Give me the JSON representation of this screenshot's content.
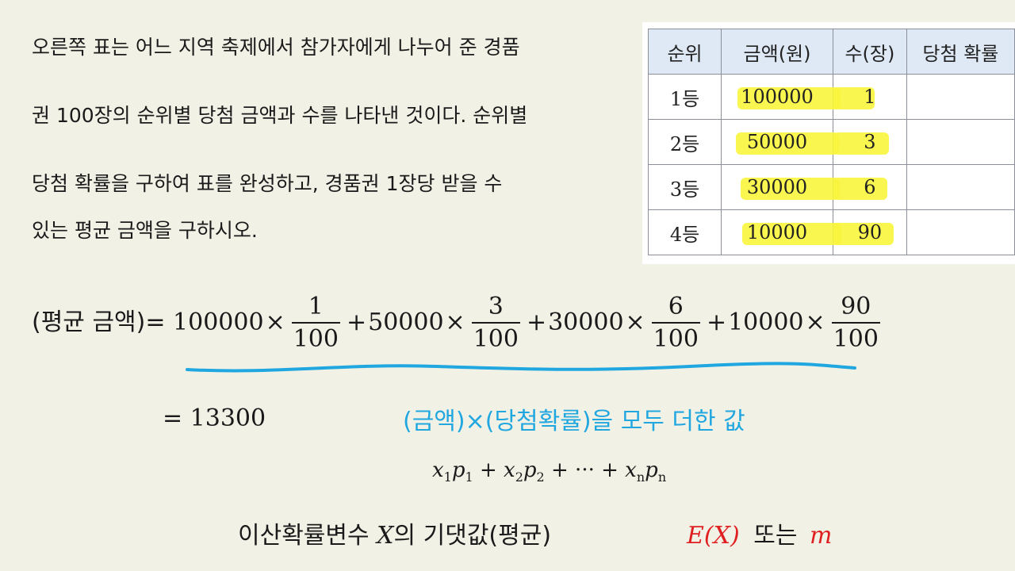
{
  "problem": {
    "lines": [
      "오른쪽 표는 어느 지역 축제에서 참가자에게 나누어 준 경품",
      "권 100장의 순위별 당첨 금액과 수를 나타낸 것이다. 순위별",
      "당첨 확률을 구하여 표를 완성하고, 경품권 1장당 받을 수",
      "있는 평균 금액을 구하시오."
    ]
  },
  "table": {
    "headers": [
      "순위",
      "금액(원)",
      "수(장)",
      "당첨 확률"
    ],
    "rows": [
      [
        "1등",
        "100000",
        "1",
        ""
      ],
      [
        "2등",
        "50000",
        "3",
        ""
      ],
      [
        "3등",
        "30000",
        "6",
        ""
      ],
      [
        "4등",
        "10000",
        "90",
        ""
      ]
    ],
    "highlight_color": "#f8f53c"
  },
  "equation": {
    "lhs": "(평균 금액)=",
    "terms": [
      {
        "amount": "100000",
        "times": "×",
        "num": "1",
        "den": "100"
      },
      {
        "plus": "+",
        "amount": "50000",
        "times": "×",
        "num": "3",
        "den": "100"
      },
      {
        "plus": "+",
        "amount": "30000",
        "times": "×",
        "num": "6",
        "den": "100"
      },
      {
        "plus": "+",
        "amount": "10000",
        "times": "×",
        "num": "90",
        "den": "100"
      }
    ],
    "result": "= 13300",
    "underline_color": "#20a7e0"
  },
  "note": "(금액)×(당첨확률)을 모두 더한 값",
  "formula": {
    "x1": "x",
    "s1": "1",
    "p1": "p",
    "q1": "1",
    "plus1": "+",
    "x2": "x",
    "s2": "2",
    "p2": "p",
    "q2": "2",
    "plus2": "+ ··· +",
    "xn": "x",
    "sn": "n",
    "pn": "p",
    "qn": "n"
  },
  "concept": {
    "text_before": "이산확률변수 ",
    "var": "X",
    "text_after": "의 기댓값(평균)",
    "notation": "E(X)",
    "or_text": "또는",
    "alt": "m",
    "accent_color": "#e02020"
  }
}
